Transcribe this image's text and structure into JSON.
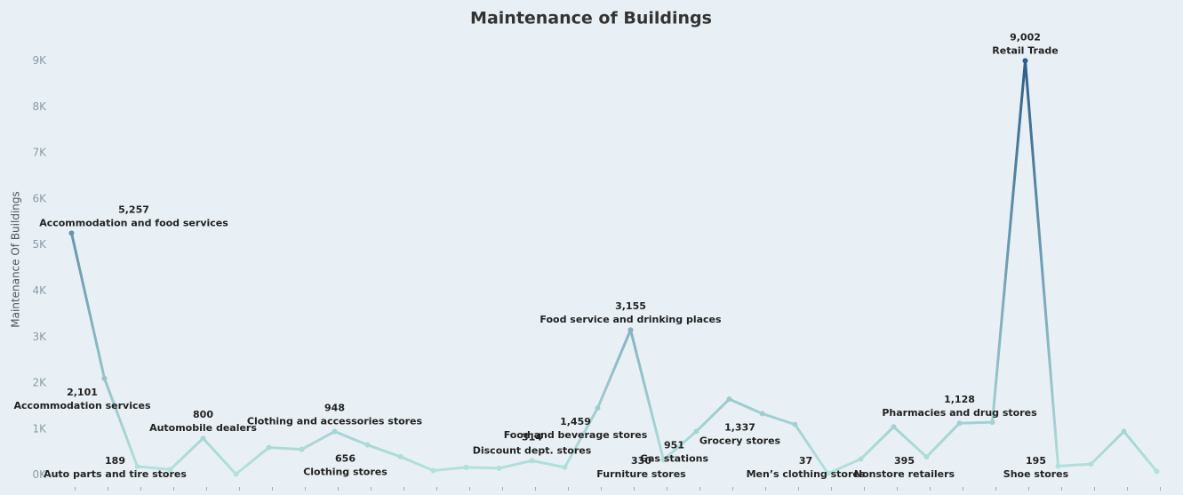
{
  "chart_data": {
    "type": "line",
    "title": "Maintenance of Buildings",
    "y_label": "Maintenance Of Buildings",
    "categories": [
      "Accommodation and food services",
      "Accommodation services",
      "Auto parts and tire stores",
      null,
      "Automobile dealers",
      null,
      null,
      null,
      "Clothing and accessories stores",
      "Clothing stores",
      null,
      null,
      null,
      null,
      "Discount dept. stores",
      null,
      "Food and beverage stores",
      "Food service and drinking places",
      "Furniture stores",
      "Gas stations",
      null,
      "Grocery stores",
      null,
      "Men’s clothing stores",
      null,
      null,
      "Nonstore retailers",
      "Pharmacies and drug stores",
      null,
      "Retail Trade",
      "Shoe stores",
      null,
      null,
      null
    ],
    "values": [
      5257,
      2101,
      189,
      120,
      800,
      20,
      600,
      560,
      948,
      656,
      400,
      100,
      170,
      150,
      314,
      170,
      1459,
      3155,
      330,
      951,
      1650,
      1337,
      1100,
      37,
      350,
      1050,
      395,
      1128,
      1150,
      9002,
      195,
      240,
      950,
      80
    ],
    "value_labels": [
      "5,257",
      "2,101",
      "189",
      null,
      "800",
      null,
      null,
      null,
      "948",
      "656",
      null,
      null,
      null,
      null,
      "314",
      null,
      "1,459",
      "3,155",
      "330",
      "951",
      null,
      "1,337",
      null,
      "37",
      null,
      null,
      "395",
      "1,128",
      null,
      "9,002",
      "195",
      null,
      null,
      null
    ],
    "color_range": [
      "#b4e2dc",
      "#2d5d8b"
    ],
    "ylim": [
      -200,
      9550
    ],
    "yticks": [
      {
        "value": 0,
        "label": "0K"
      },
      {
        "value": 1000,
        "label": "1K"
      },
      {
        "value": 2000,
        "label": "2K"
      },
      {
        "value": 3000,
        "label": "3K"
      },
      {
        "value": 4000,
        "label": "4K"
      },
      {
        "value": 5000,
        "label": "5K"
      },
      {
        "value": 6000,
        "label": "6K"
      },
      {
        "value": 7000,
        "label": "7K"
      },
      {
        "value": 8000,
        "label": "8K"
      },
      {
        "value": 9000,
        "label": "9K"
      }
    ],
    "grid": false
  }
}
